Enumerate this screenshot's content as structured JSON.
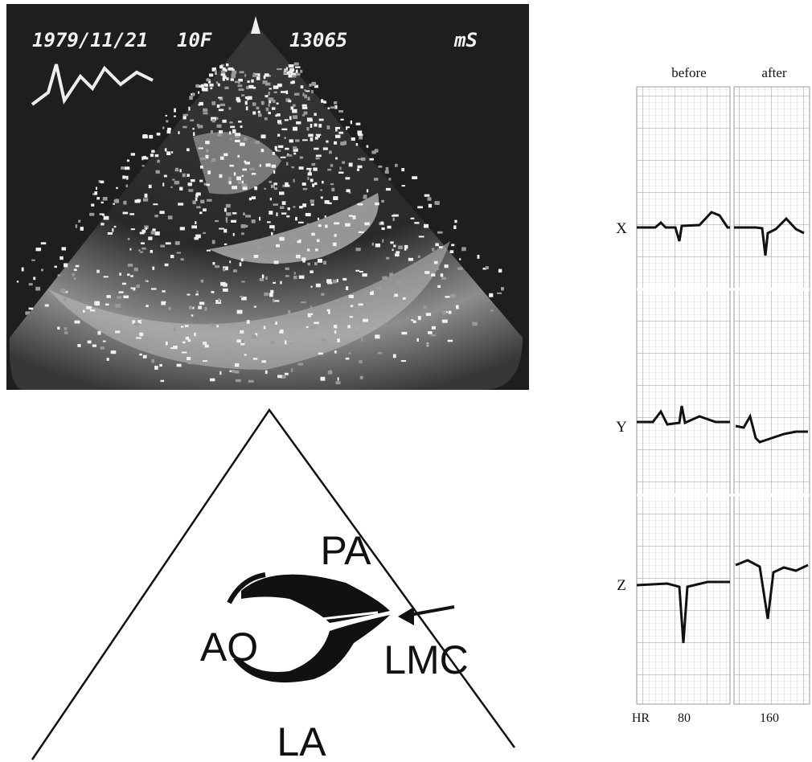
{
  "echo": {
    "date": "1979/11/21",
    "patient": "10F",
    "id": "13065",
    "unit": "mS"
  },
  "diagram": {
    "labels": [
      "PA",
      "AO",
      "LMC",
      "LA"
    ]
  },
  "ecg": {
    "columns": [
      "before",
      "after"
    ],
    "leads": [
      "X",
      "Y",
      "Z"
    ],
    "hr_label": "HR",
    "hr": [
      80,
      160
    ]
  }
}
